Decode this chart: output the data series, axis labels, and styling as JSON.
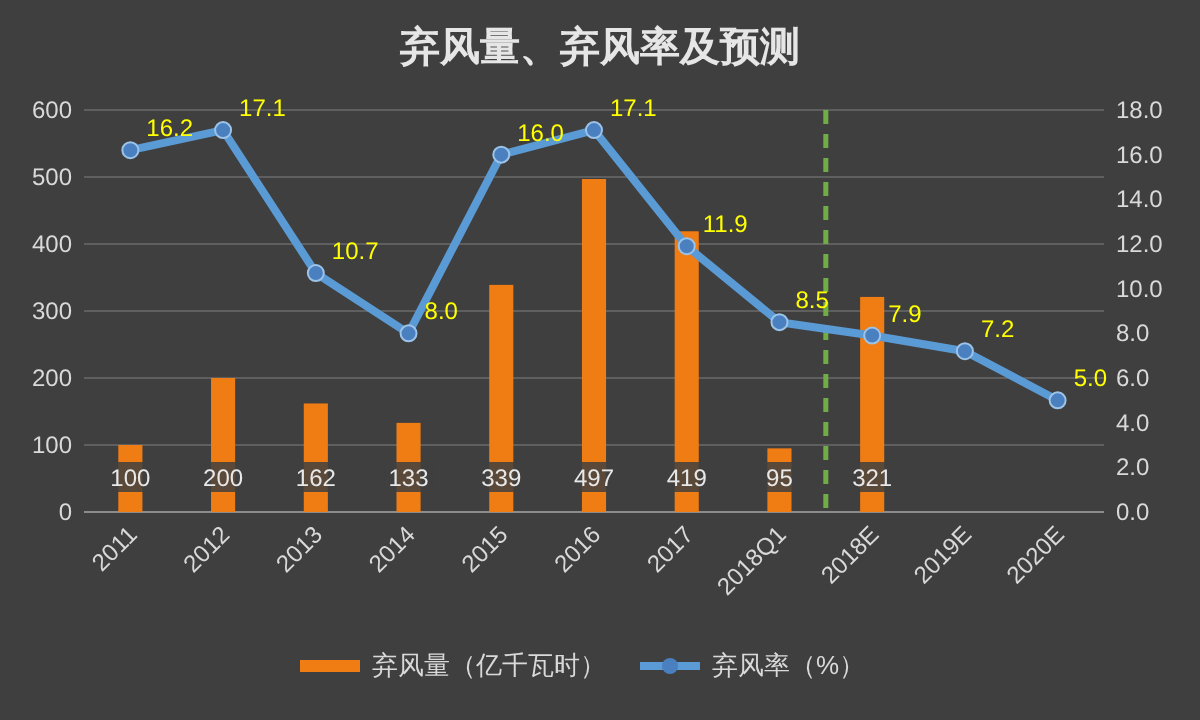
{
  "chart_data": {
    "type": "bar",
    "title": "弃风量、弃风率及预测",
    "categories": [
      "2011",
      "2012",
      "2013",
      "2014",
      "2015",
      "2016",
      "2017",
      "2018Q1",
      "2018E",
      "2019E",
      "2020E"
    ],
    "series": [
      {
        "name": "弃风量（亿千瓦时）",
        "color": "#f07c14",
        "values": [
          100,
          200,
          162,
          133,
          339,
          497,
          419,
          95,
          321,
          null,
          null
        ],
        "value_labels": [
          "100",
          "200",
          "162",
          "133",
          "339",
          "497",
          "419",
          "95",
          "321",
          null,
          null
        ]
      },
      {
        "name": "弃风率（%）",
        "type": "line",
        "axis": "y2",
        "color": "#5b9bd5",
        "marker": "circle",
        "values": [
          16.2,
          17.1,
          10.7,
          8.0,
          16.0,
          17.1,
          11.9,
          8.5,
          7.9,
          7.2,
          5.0
        ],
        "value_labels": [
          "16.2",
          "17.1",
          "10.7",
          "8.0",
          "16.0",
          "17.1",
          "11.9",
          "8.5",
          "7.9",
          "7.2",
          "5.0"
        ]
      }
    ],
    "ylim": [
      0,
      600
    ],
    "yticks": [
      0,
      100,
      200,
      300,
      400,
      500,
      600
    ],
    "y2lim": [
      0,
      18
    ],
    "y2ticks": [
      {
        "value": 0,
        "label": "0.0"
      },
      {
        "value": 2,
        "label": "2.0"
      },
      {
        "value": 4,
        "label": "4.0"
      },
      {
        "value": 6,
        "label": "6.0"
      },
      {
        "value": 8,
        "label": "8.0"
      },
      {
        "value": 10,
        "label": "10.0"
      },
      {
        "value": 12,
        "label": "12.0"
      },
      {
        "value": 14,
        "label": "14.0"
      },
      {
        "value": 16,
        "label": "16.0"
      },
      {
        "value": 18,
        "label": "18.0"
      }
    ],
    "ref_lines": [
      {
        "axis": "x",
        "value": "2018Q1",
        "color": "#70ad47",
        "line_style": "dashed"
      }
    ],
    "grid": "y",
    "legend": "bottom"
  }
}
